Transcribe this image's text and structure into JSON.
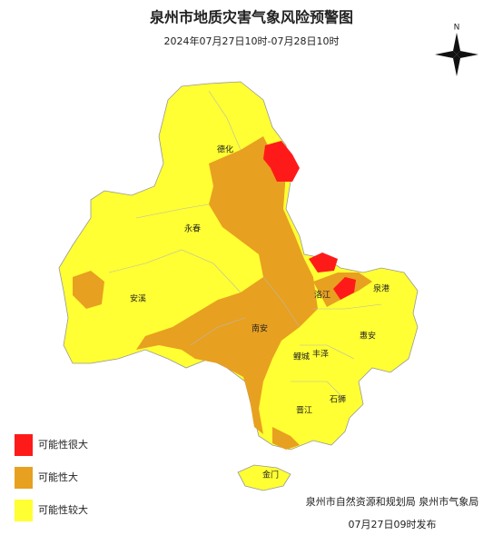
{
  "header": {
    "title": "泉州市地质灾害气象风险预警图",
    "subtitle": "2024年07月27日10时-07月28日10时"
  },
  "compass": {
    "label": "N"
  },
  "places": [
    {
      "label": "德化"
    },
    {
      "label": "永春"
    },
    {
      "label": "安溪"
    },
    {
      "label": "南安"
    },
    {
      "label": "洛江"
    },
    {
      "label": "泉港"
    },
    {
      "label": "惠安"
    },
    {
      "label": "鲤城"
    },
    {
      "label": "丰泽"
    },
    {
      "label": "石狮"
    },
    {
      "label": "晋江"
    },
    {
      "label": "金门"
    }
  ],
  "legend": [
    {
      "label": "可能性很大",
      "color": "#ff1a1a"
    },
    {
      "label": "可能性大",
      "color": "#e8a020"
    },
    {
      "label": "可能性较大",
      "color": "#ffff33"
    }
  ],
  "footer": {
    "issuer": "泉州市自然资源和规划局  泉州市气象局",
    "time": "07月27日09时发布"
  }
}
